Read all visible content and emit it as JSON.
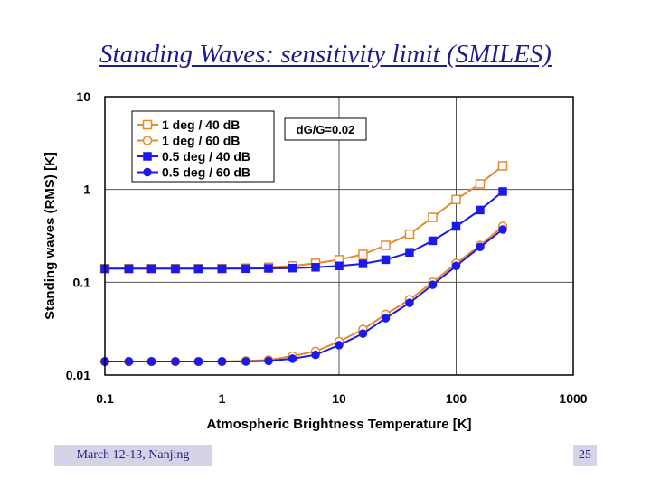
{
  "slide": {
    "title": "Standing Waves: sensitivity limit (SMILES)",
    "footer_left": "March 12-13, Nanjing",
    "page_number": "25"
  },
  "colors": {
    "orange": "#e8892b",
    "blue": "#1a1aee",
    "title": "#1c1c8c",
    "footer_bg": "#d4d4e6"
  },
  "chart_data": {
    "type": "line",
    "title": "",
    "xlabel": "Atmospheric Brightness Temperature [K]",
    "ylabel": "Standing waves (RMS) [K]",
    "xscale": "log",
    "yscale": "log",
    "xlim": [
      0.1,
      1000
    ],
    "ylim": [
      0.01,
      10
    ],
    "x_ticks": [
      "0.1",
      "1",
      "10",
      "100",
      "1000"
    ],
    "y_ticks": [
      "0.01",
      "0.1",
      "1",
      "10"
    ],
    "grid": true,
    "legend_position": "top-left",
    "annotation": "dG/G=0.02",
    "x": [
      0.1,
      0.16,
      0.25,
      0.4,
      0.63,
      1,
      1.6,
      2.5,
      4,
      6.3,
      10,
      16,
      25,
      40,
      63,
      100,
      160,
      250
    ],
    "series": [
      {
        "name": "1 deg / 40 dB",
        "marker": "open-square",
        "color": "#e8892b",
        "values": [
          0.14,
          0.14,
          0.14,
          0.14,
          0.14,
          0.14,
          0.142,
          0.145,
          0.15,
          0.16,
          0.175,
          0.2,
          0.25,
          0.33,
          0.5,
          0.78,
          1.15,
          1.8
        ]
      },
      {
        "name": "1 deg / 60 dB",
        "marker": "open-circle",
        "color": "#e8892b",
        "values": [
          0.014,
          0.014,
          0.014,
          0.014,
          0.014,
          0.014,
          0.0142,
          0.0145,
          0.016,
          0.018,
          0.023,
          0.031,
          0.045,
          0.065,
          0.1,
          0.16,
          0.25,
          0.4
        ]
      },
      {
        "name": "0.5 deg / 40 dB",
        "marker": "filled-square",
        "color": "#1a1aee",
        "values": [
          0.14,
          0.14,
          0.14,
          0.14,
          0.14,
          0.14,
          0.14,
          0.141,
          0.142,
          0.145,
          0.15,
          0.158,
          0.175,
          0.21,
          0.28,
          0.4,
          0.6,
          0.95
        ]
      },
      {
        "name": "0.5 deg / 60 dB",
        "marker": "filled-circle",
        "color": "#1a1aee",
        "values": [
          0.014,
          0.014,
          0.014,
          0.014,
          0.014,
          0.014,
          0.014,
          0.0142,
          0.015,
          0.0165,
          0.021,
          0.028,
          0.041,
          0.06,
          0.094,
          0.15,
          0.24,
          0.37
        ]
      }
    ]
  }
}
